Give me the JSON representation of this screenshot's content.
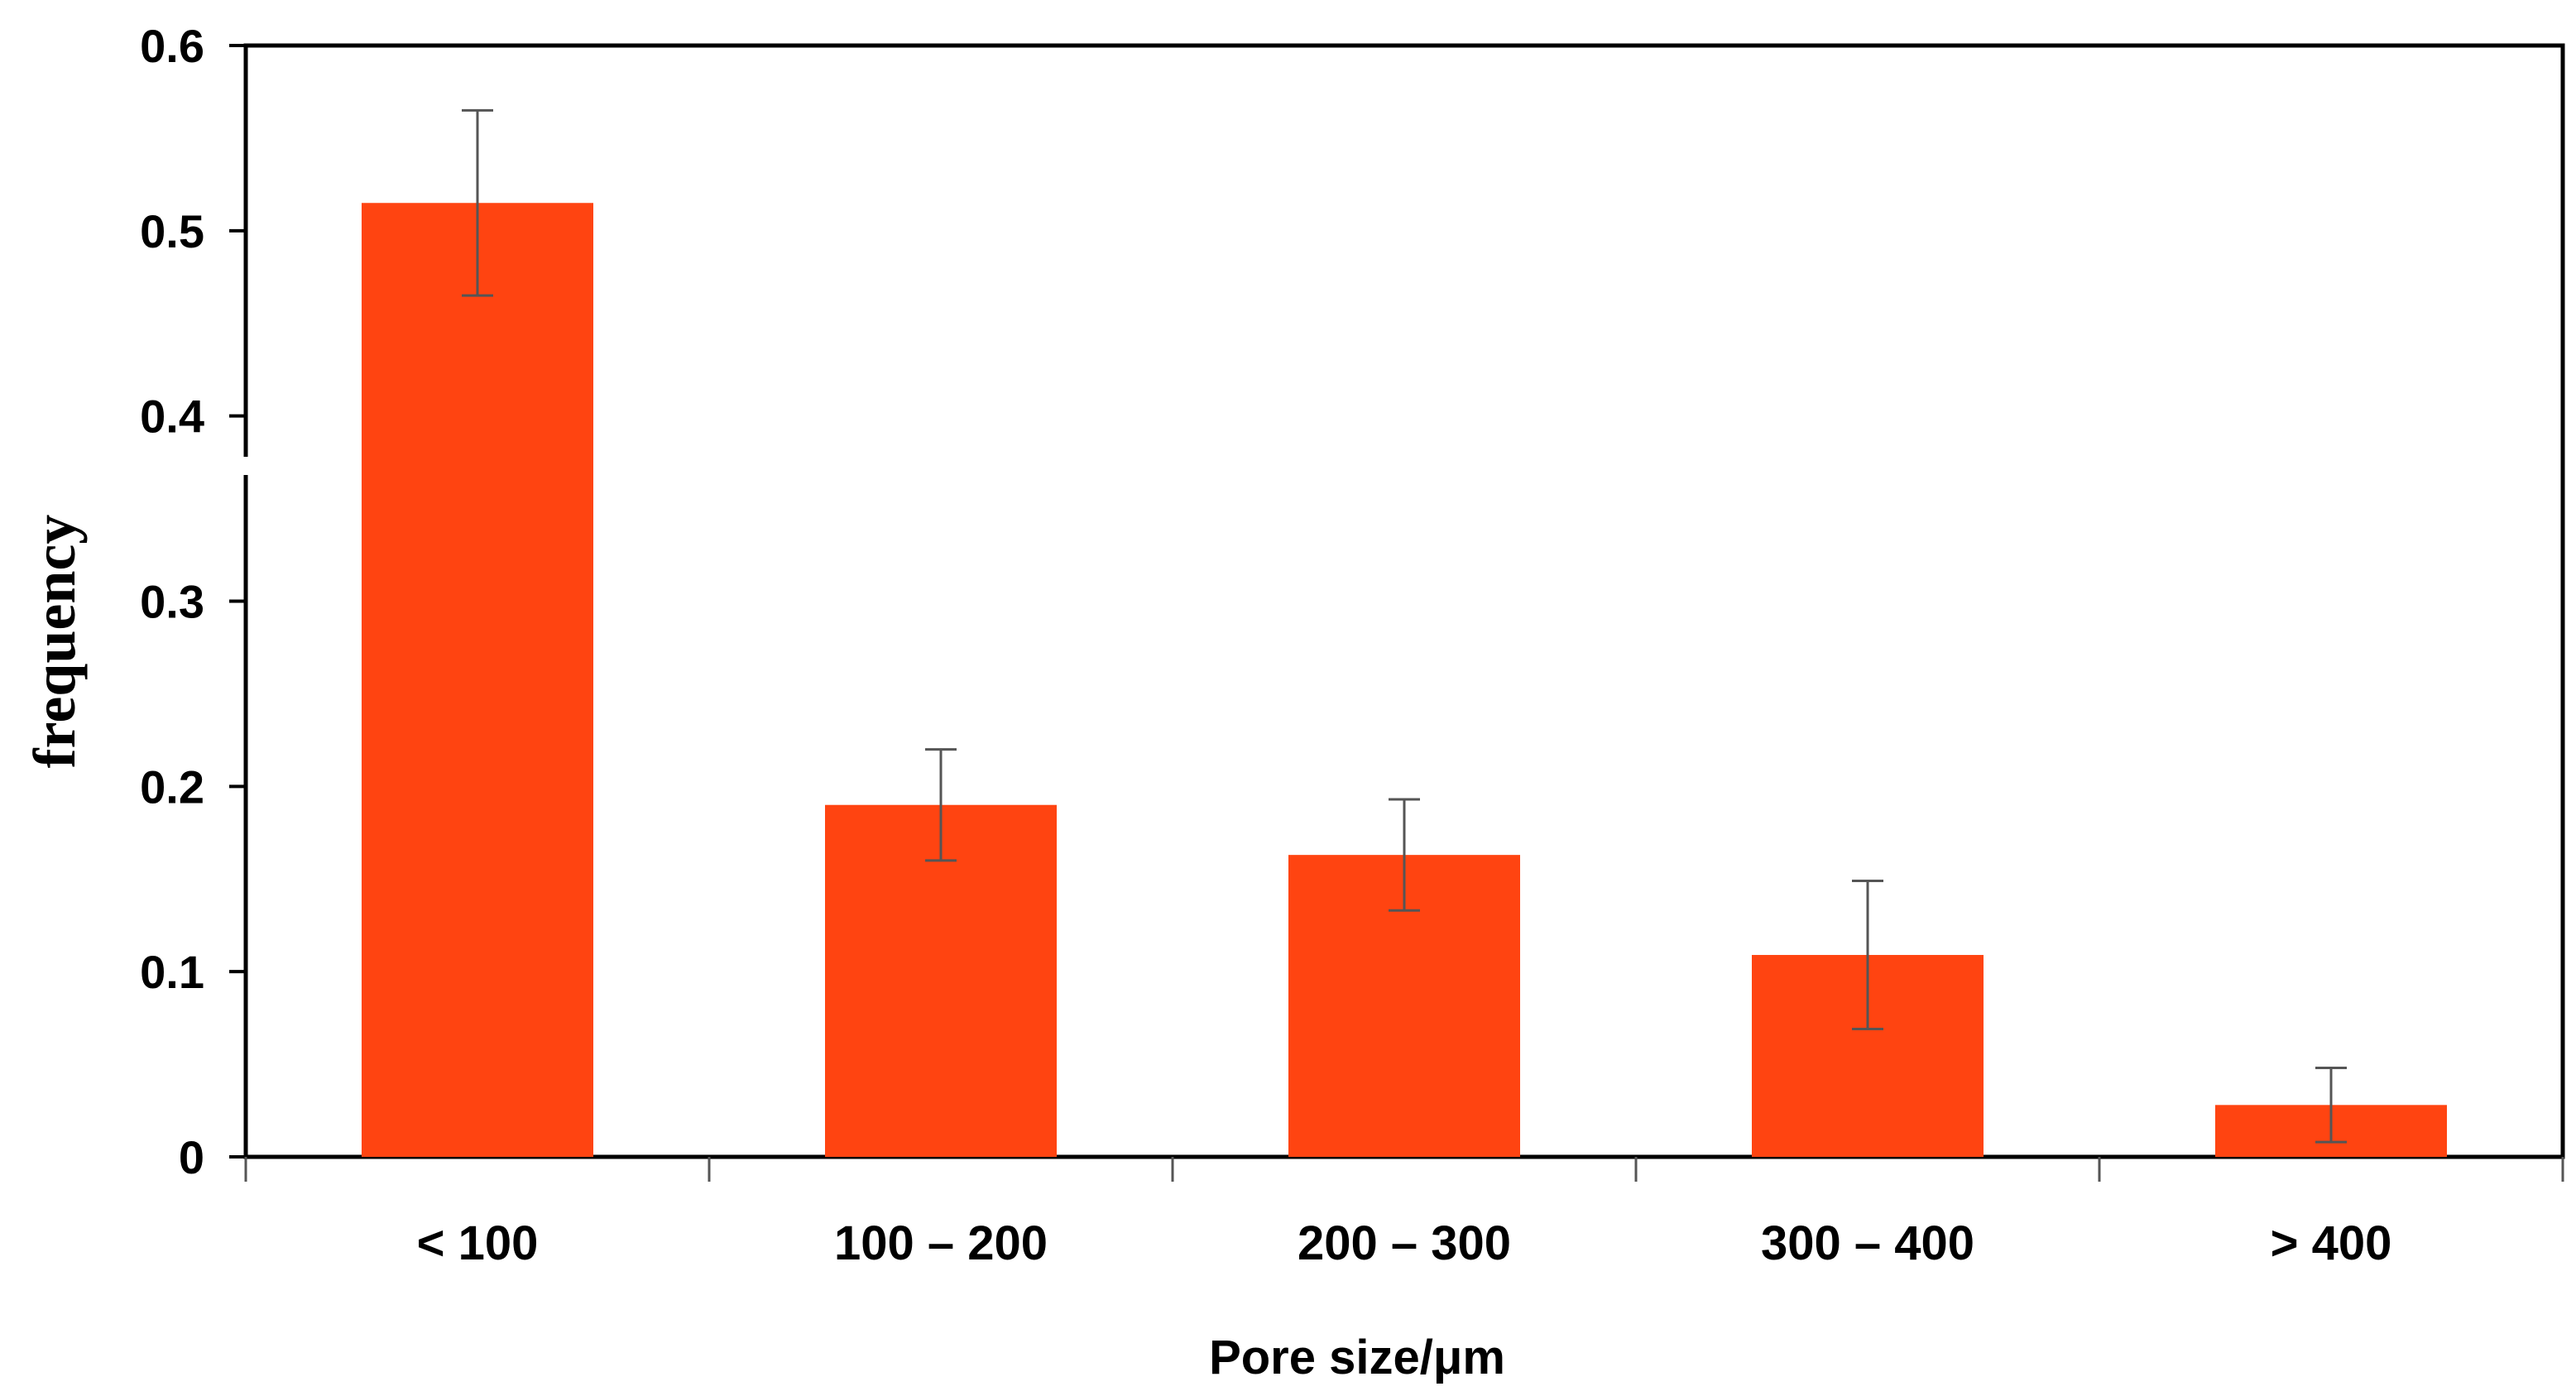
{
  "chart_data": {
    "type": "bar",
    "categories": [
      "< 100",
      "100 – 200",
      "200 – 300",
      "300 – 400",
      "> 400"
    ],
    "values": [
      0.515,
      0.19,
      0.163,
      0.109,
      0.028
    ],
    "error": [
      0.05,
      0.03,
      0.03,
      0.04,
      0.02
    ],
    "xlabel": "Pore size/μm",
    "ylabel": "frequency",
    "ylim": [
      0,
      0.6
    ],
    "yticks": [
      0,
      0.1,
      0.2,
      0.3,
      0.4,
      0.5,
      0.6
    ],
    "ytick_labels": [
      "0",
      "0.1",
      "0.2",
      "0.3",
      "0.4",
      "0.5",
      "0.6"
    ],
    "bar_color": "#FF4411",
    "error_bar_color": "#555555",
    "grid": false,
    "legend": "none"
  }
}
